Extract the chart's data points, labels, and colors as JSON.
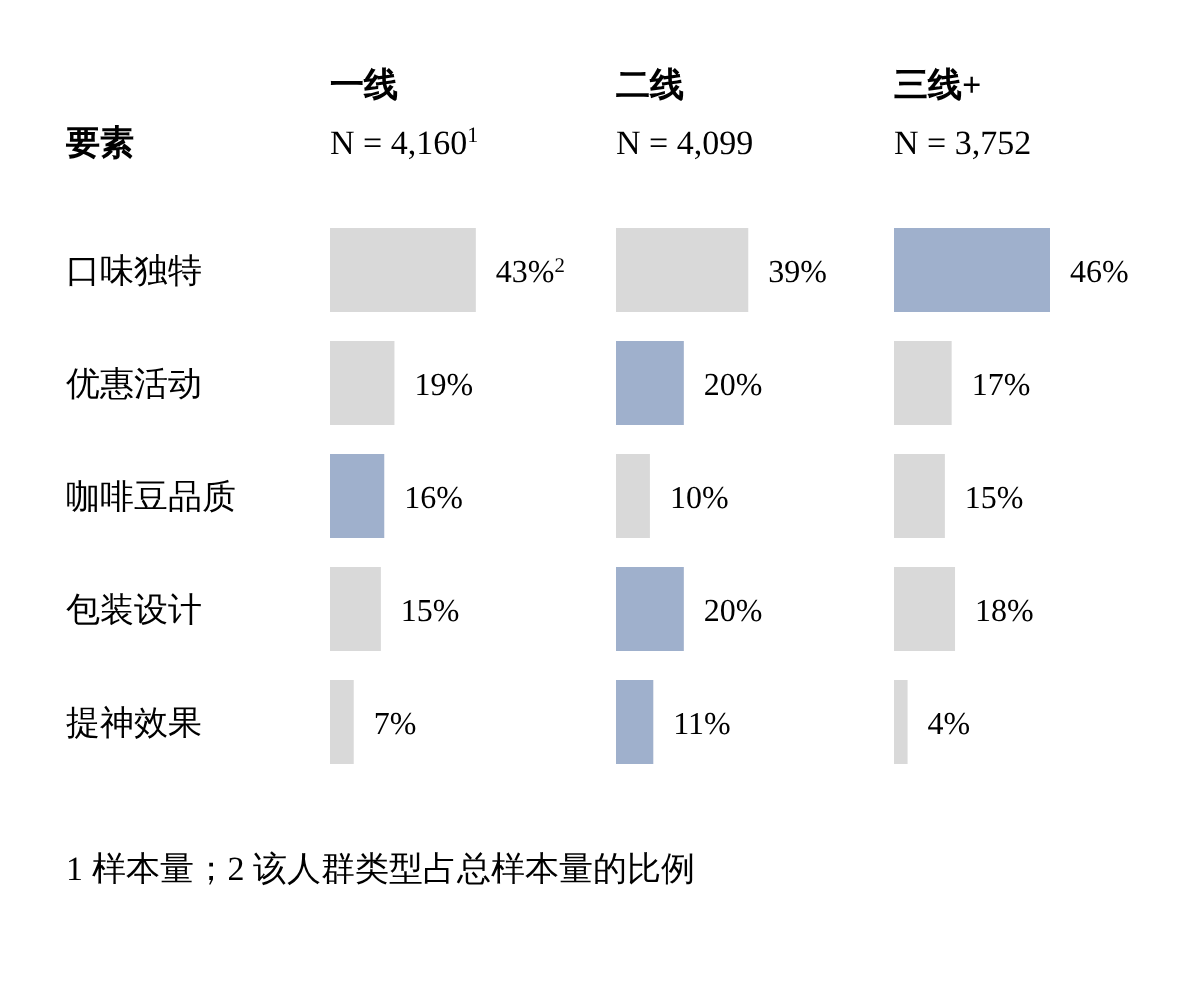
{
  "chart_data": [
    {
      "type": "bar",
      "orientation": "horizontal",
      "title": "一线",
      "subtitle": "N = 4,160$^{1}$",
      "ylabel": "要素",
      "tick_labels": "y",
      "categories": [
        "口味独特",
        "优惠活动",
        "咖啡豆品质",
        "包装设计",
        "提神效果"
      ],
      "values": [
        43,
        19,
        16,
        15,
        7
      ],
      "colors": [
        "#d9d9d9",
        "#d9d9d9",
        "#9fb0cc",
        "#d9d9d9",
        "#d9d9d9"
      ],
      "value_labels": [
        "43%$^{2}$",
        "19%",
        "16%",
        "15%",
        "7%"
      ],
      "annotations": [
        "1 样本量；2 该人群类型占总样本量的比例"
      ]
    },
    {
      "type": "bar",
      "orientation": "horizontal",
      "title": "二线",
      "subtitle": "N = 4,099",
      "tick_labels": false,
      "categories": [
        null,
        null,
        null,
        null,
        null
      ],
      "values": [
        39,
        20,
        10,
        20,
        11
      ],
      "colors": [
        "#d9d9d9",
        "#9fb0cc",
        "#d9d9d9",
        "#9fb0cc",
        "#9fb0cc"
      ],
      "value_labels": [
        "39%",
        "20%",
        "10%",
        "20%",
        "11%"
      ]
    },
    {
      "type": "bar",
      "orientation": "horizontal",
      "title": "三线+",
      "subtitle": "N = 3,752",
      "tick_labels": false,
      "categories": [
        null,
        null,
        null,
        null,
        null
      ],
      "values": [
        46,
        17,
        15,
        18,
        4
      ],
      "colors": [
        "#9fb0cc",
        "#d9d9d9",
        "#d9d9d9",
        "#d9d9d9",
        "#d9d9d9"
      ],
      "value_labels": [
        "46%",
        "17%",
        "15%",
        "18%",
        "4%"
      ]
    }
  ]
}
